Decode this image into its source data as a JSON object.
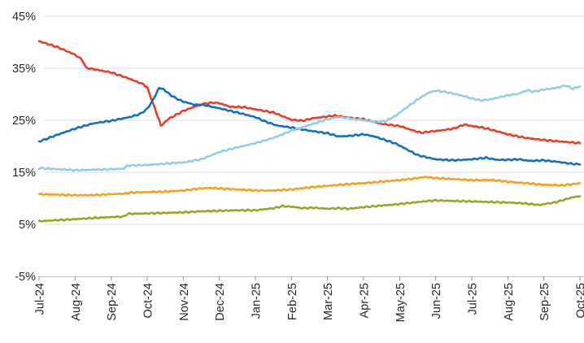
{
  "chart_data": {
    "type": "line",
    "title": "",
    "legend": "none",
    "grid": true,
    "x_labels": [
      "Jul-24",
      "Aug-24",
      "Sep-24",
      "Oct-24",
      "Nov-24",
      "Dec-24",
      "Jan-25",
      "Feb-25",
      "Mar-25",
      "Apr-25",
      "May-25",
      "Jun-25",
      "Jul-25",
      "Aug-25",
      "Sep-25",
      "Oct-25"
    ],
    "y_axis": {
      "min": -5,
      "max": 45,
      "ticks": [
        45,
        35,
        25,
        15,
        5,
        -5
      ],
      "tick_labels": [
        "45%",
        "35%",
        "25%",
        "15%",
        "5%",
        "-5%"
      ],
      "unit": "%"
    },
    "x_axis": {
      "min": 0,
      "max": 15,
      "unit": "month-index (0 = Jul-24)"
    },
    "series": [
      {
        "id": "red-line",
        "color": "#EB3C27",
        "points": [
          [
            0,
            40.2
          ],
          [
            0.5,
            39.1
          ],
          [
            1,
            37.6
          ],
          [
            1.2,
            36.6
          ],
          [
            1.3,
            35.1
          ],
          [
            2,
            34.2
          ],
          [
            2.5,
            33.0
          ],
          [
            2.9,
            31.9
          ],
          [
            3,
            31.3
          ],
          [
            3.2,
            27.5
          ],
          [
            3.38,
            24.0
          ],
          [
            3.6,
            25.3
          ],
          [
            4,
            26.8
          ],
          [
            4.5,
            28.1
          ],
          [
            4.8,
            28.4
          ],
          [
            5,
            28.3
          ],
          [
            5.3,
            27.6
          ],
          [
            5.7,
            27.5
          ],
          [
            6,
            27.1
          ],
          [
            6.5,
            26.5
          ],
          [
            7,
            25.1
          ],
          [
            7.3,
            24.9
          ],
          [
            7.6,
            25.4
          ],
          [
            8.2,
            25.9
          ],
          [
            8.5,
            25.6
          ],
          [
            9,
            25.2
          ],
          [
            9.5,
            24.3
          ],
          [
            10,
            23.9
          ],
          [
            10.3,
            23.2
          ],
          [
            10.6,
            22.6
          ],
          [
            10.8,
            22.8
          ],
          [
            11.2,
            23.1
          ],
          [
            11.5,
            23.4
          ],
          [
            11.8,
            24.2
          ],
          [
            12,
            23.9
          ],
          [
            12.3,
            23.6
          ],
          [
            12.7,
            22.9
          ],
          [
            13,
            22.3
          ],
          [
            13.5,
            21.6
          ],
          [
            14,
            21.2
          ],
          [
            14.5,
            20.9
          ],
          [
            15,
            20.6
          ]
        ]
      },
      {
        "id": "dark-blue-line",
        "color": "#1170C4",
        "points": [
          [
            0,
            20.9
          ],
          [
            0.5,
            22.2
          ],
          [
            1,
            23.4
          ],
          [
            1.5,
            24.4
          ],
          [
            2,
            24.9
          ],
          [
            2.5,
            25.6
          ],
          [
            2.8,
            26.2
          ],
          [
            3,
            27.2
          ],
          [
            3.15,
            28.8
          ],
          [
            3.33,
            31.2
          ],
          [
            3.45,
            31.0
          ],
          [
            3.6,
            30.1
          ],
          [
            3.8,
            29.2
          ],
          [
            4,
            28.6
          ],
          [
            4.3,
            28.0
          ],
          [
            4.6,
            27.9
          ],
          [
            5,
            27.3
          ],
          [
            5.5,
            26.5
          ],
          [
            6,
            25.6
          ],
          [
            6.3,
            24.7
          ],
          [
            6.6,
            24.0
          ],
          [
            7,
            23.6
          ],
          [
            7.5,
            23.0
          ],
          [
            8,
            22.5
          ],
          [
            8.3,
            21.9
          ],
          [
            8.6,
            22.0
          ],
          [
            9,
            22.3
          ],
          [
            9.3,
            21.9
          ],
          [
            9.6,
            21.2
          ],
          [
            9.9,
            20.5
          ],
          [
            10.2,
            19.4
          ],
          [
            10.5,
            18.3
          ],
          [
            10.8,
            17.8
          ],
          [
            11,
            17.5
          ],
          [
            11.5,
            17.3
          ],
          [
            12,
            17.5
          ],
          [
            12.4,
            17.8
          ],
          [
            12.7,
            17.4
          ],
          [
            13,
            17.4
          ],
          [
            13.3,
            17.5
          ],
          [
            13.6,
            17.2
          ],
          [
            14,
            17.3
          ],
          [
            14.4,
            17.0
          ],
          [
            14.7,
            16.7
          ],
          [
            15,
            16.5
          ]
        ]
      },
      {
        "id": "light-blue-line",
        "color": "#92CCEA",
        "points": [
          [
            0,
            15.8
          ],
          [
            0.5,
            15.6
          ],
          [
            1,
            15.4
          ],
          [
            1.5,
            15.5
          ],
          [
            2,
            15.6
          ],
          [
            2.35,
            15.7
          ],
          [
            2.45,
            16.3
          ],
          [
            3,
            16.4
          ],
          [
            3.4,
            16.6
          ],
          [
            4,
            16.9
          ],
          [
            4.5,
            17.5
          ],
          [
            5,
            18.9
          ],
          [
            5.5,
            19.8
          ],
          [
            6,
            20.6
          ],
          [
            6.5,
            21.6
          ],
          [
            7,
            23.0
          ],
          [
            7.5,
            24.1
          ],
          [
            8,
            25.2
          ],
          [
            8.3,
            25.6
          ],
          [
            8.7,
            25.3
          ],
          [
            9,
            25.0
          ],
          [
            9.3,
            24.7
          ],
          [
            9.6,
            24.8
          ],
          [
            9.9,
            25.9
          ],
          [
            10.2,
            27.5
          ],
          [
            10.5,
            29.0
          ],
          [
            10.8,
            30.3
          ],
          [
            11,
            30.7
          ],
          [
            11.3,
            30.4
          ],
          [
            11.7,
            29.8
          ],
          [
            12,
            29.2
          ],
          [
            12.25,
            28.8
          ],
          [
            12.5,
            29.0
          ],
          [
            13,
            29.8
          ],
          [
            13.3,
            30.1
          ],
          [
            13.55,
            30.8
          ],
          [
            13.7,
            30.5
          ],
          [
            14,
            30.9
          ],
          [
            14.4,
            31.3
          ],
          [
            14.6,
            31.7
          ],
          [
            14.8,
            31.1
          ],
          [
            15,
            31.5
          ]
        ]
      },
      {
        "id": "orange-line",
        "color": "#F8A01D",
        "points": [
          [
            0,
            10.8
          ],
          [
            0.5,
            10.7
          ],
          [
            1,
            10.6
          ],
          [
            1.5,
            10.6
          ],
          [
            2,
            10.8
          ],
          [
            2.4,
            10.9
          ],
          [
            2.5,
            11.1
          ],
          [
            3,
            11.2
          ],
          [
            3.5,
            11.3
          ],
          [
            4,
            11.5
          ],
          [
            4.5,
            11.9
          ],
          [
            4.7,
            12.0
          ],
          [
            5,
            11.9
          ],
          [
            5.5,
            11.7
          ],
          [
            6,
            11.5
          ],
          [
            6.5,
            11.5
          ],
          [
            7,
            11.7
          ],
          [
            7.5,
            12.1
          ],
          [
            8,
            12.4
          ],
          [
            8.5,
            12.7
          ],
          [
            9,
            12.9
          ],
          [
            9.5,
            13.2
          ],
          [
            10,
            13.5
          ],
          [
            10.4,
            13.8
          ],
          [
            10.7,
            14.1
          ],
          [
            11,
            13.9
          ],
          [
            11.5,
            13.7
          ],
          [
            12,
            13.5
          ],
          [
            12.6,
            13.5
          ],
          [
            13,
            13.2
          ],
          [
            13.5,
            12.9
          ],
          [
            14,
            12.6
          ],
          [
            14.5,
            12.5
          ],
          [
            14.8,
            12.7
          ],
          [
            15,
            12.9
          ]
        ]
      },
      {
        "id": "olive-line",
        "color": "#94A821",
        "points": [
          [
            0,
            5.6
          ],
          [
            0.5,
            5.8
          ],
          [
            1,
            6.0
          ],
          [
            1.5,
            6.2
          ],
          [
            2,
            6.4
          ],
          [
            2.35,
            6.5
          ],
          [
            2.45,
            7.0
          ],
          [
            3,
            7.1
          ],
          [
            3.5,
            7.2
          ],
          [
            4,
            7.3
          ],
          [
            4.5,
            7.5
          ],
          [
            5,
            7.6
          ],
          [
            5.5,
            7.7
          ],
          [
            6,
            7.7
          ],
          [
            6.5,
            8.1
          ],
          [
            6.75,
            8.5
          ],
          [
            7,
            8.4
          ],
          [
            7.3,
            8.1
          ],
          [
            7.6,
            8.2
          ],
          [
            8,
            8.0
          ],
          [
            8.3,
            8.1
          ],
          [
            8.6,
            8.0
          ],
          [
            9,
            8.3
          ],
          [
            9.5,
            8.6
          ],
          [
            10,
            8.9
          ],
          [
            10.4,
            9.2
          ],
          [
            10.8,
            9.5
          ],
          [
            11,
            9.6
          ],
          [
            11.5,
            9.5
          ],
          [
            12,
            9.4
          ],
          [
            12.5,
            9.3
          ],
          [
            13,
            9.2
          ],
          [
            13.5,
            9.0
          ],
          [
            13.9,
            8.7
          ],
          [
            14,
            8.9
          ],
          [
            14.3,
            9.2
          ],
          [
            14.6,
            9.8
          ],
          [
            14.8,
            10.2
          ],
          [
            15,
            10.4
          ]
        ]
      }
    ]
  },
  "colors": {
    "background": "#FFFFFF",
    "gridline": "#D9D9D9",
    "axis": "#BFBFBF",
    "tick": "#8C8C8C",
    "label": "#262626"
  }
}
